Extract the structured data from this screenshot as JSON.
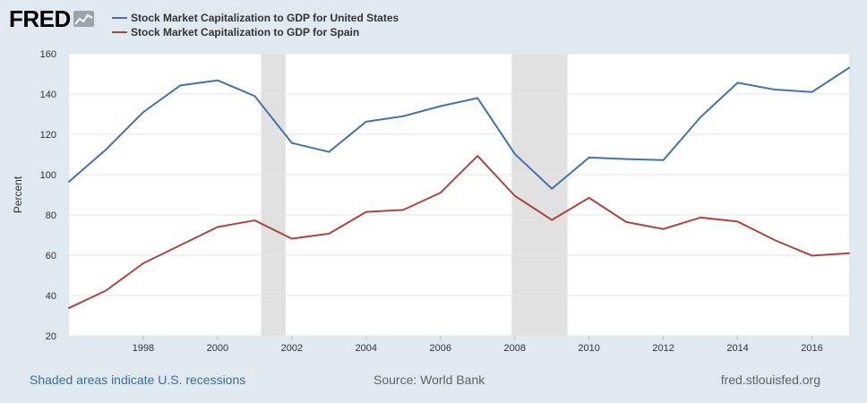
{
  "logo": {
    "text": "FRED",
    "icon": "line-graph-icon"
  },
  "colors": {
    "background": "#e1e9f0",
    "plot_background": "#ffffff",
    "recession_shade": "#e1e1e1",
    "series_us": "#4572a7",
    "series_spain": "#aa4643",
    "grid": "#e6e6e6"
  },
  "footer": {
    "recession_note": "Shaded areas indicate U.S. recessions",
    "source": "Source: World Bank",
    "url": "fred.stlouisfed.org"
  },
  "chart_data": {
    "type": "line",
    "ylabel": "Percent",
    "xlabel": "",
    "xlim": [
      1996,
      2017
    ],
    "ylim": [
      20,
      160
    ],
    "yticks": [
      20,
      40,
      60,
      80,
      100,
      120,
      140,
      160
    ],
    "xticks": [
      1998,
      2000,
      2002,
      2004,
      2006,
      2008,
      2010,
      2012,
      2014,
      2016
    ],
    "grid": true,
    "legend_position": "top-left",
    "recessions": [
      [
        2001.17,
        2001.83
      ],
      [
        2007.92,
        2009.42
      ]
    ],
    "x": [
      1996,
      1997,
      1998,
      1999,
      2000,
      2001,
      2002,
      2003,
      2004,
      2005,
      2006,
      2007,
      2008,
      2009,
      2010,
      2011,
      2012,
      2013,
      2014,
      2015,
      2016,
      2017
    ],
    "series": [
      {
        "name": "Stock Market Capitalization to GDP for United States",
        "color": "#4572a7",
        "values": [
          96.5,
          112.5,
          131,
          144.3,
          146.8,
          139,
          115.7,
          111.3,
          126.3,
          129,
          134,
          138,
          110.3,
          93,
          108.5,
          107.7,
          107.2,
          128.5,
          145.6,
          142.2,
          141,
          153
        ]
      },
      {
        "name": "Stock Market Capitalization to GDP for Spain",
        "color": "#aa4643",
        "values": [
          33.8,
          42.5,
          56,
          65,
          74,
          77.3,
          68.2,
          70.7,
          81.5,
          82.5,
          91,
          109.3,
          89.5,
          77.5,
          88.5,
          76.5,
          73,
          78.7,
          76.7,
          67.5,
          59.8,
          61
        ]
      }
    ]
  }
}
